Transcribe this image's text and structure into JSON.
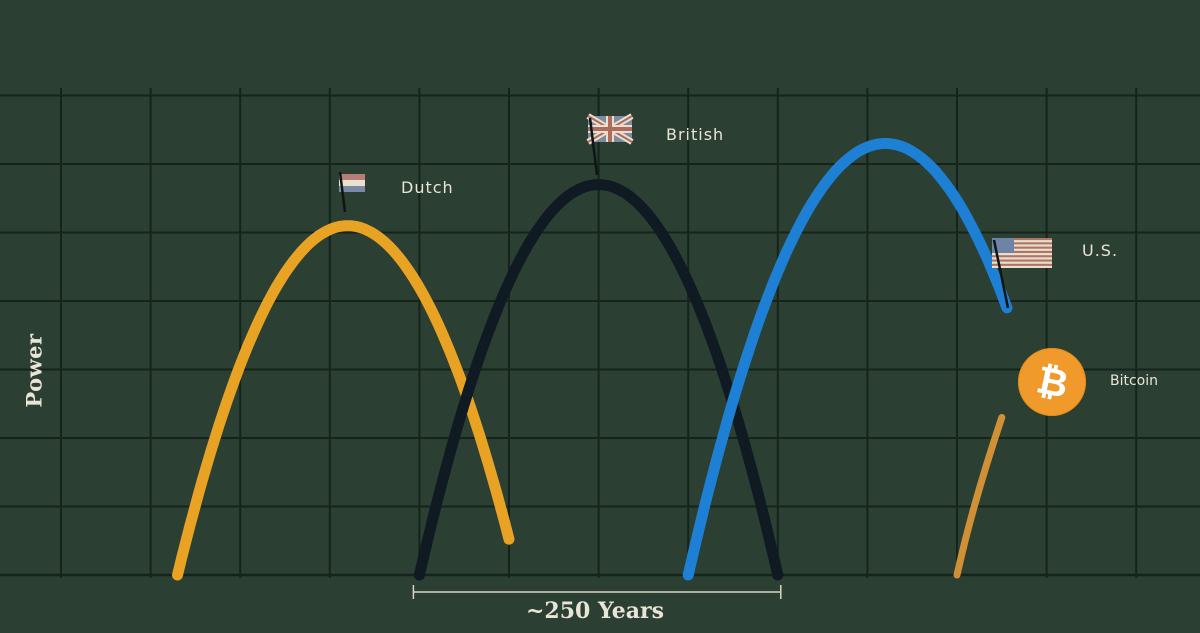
{
  "chart_data": {
    "type": "line",
    "ylabel": "Power",
    "xlabel": "~250 Years",
    "xlim": [
      0,
      13
    ],
    "ylim": [
      0,
      8
    ],
    "grid": true,
    "series": [
      {
        "name": "Dutch",
        "color": "#e8a224",
        "peak_x": 3.2,
        "peak_y": 5.1,
        "x_start": 1.3,
        "x_end": 5.0
      },
      {
        "name": "British",
        "color": "#101a22",
        "peak_x": 6.0,
        "peak_y": 5.7,
        "x_start": 4.0,
        "x_end": 8.0
      },
      {
        "name": "U.S.",
        "color": "#1e80d4",
        "peak_x": 9.2,
        "peak_y": 6.3,
        "x_start": 7.0,
        "x_end": 11.0,
        "y_end": 3.9
      },
      {
        "name": "Bitcoin",
        "color": "#e29a36",
        "x_start": 10.0,
        "x_end": 10.5,
        "y_start": 0.0,
        "y_end": 2.3
      }
    ],
    "span": {
      "x_start": 4.0,
      "x_end": 8.0,
      "label": "~250 Years"
    }
  }
}
